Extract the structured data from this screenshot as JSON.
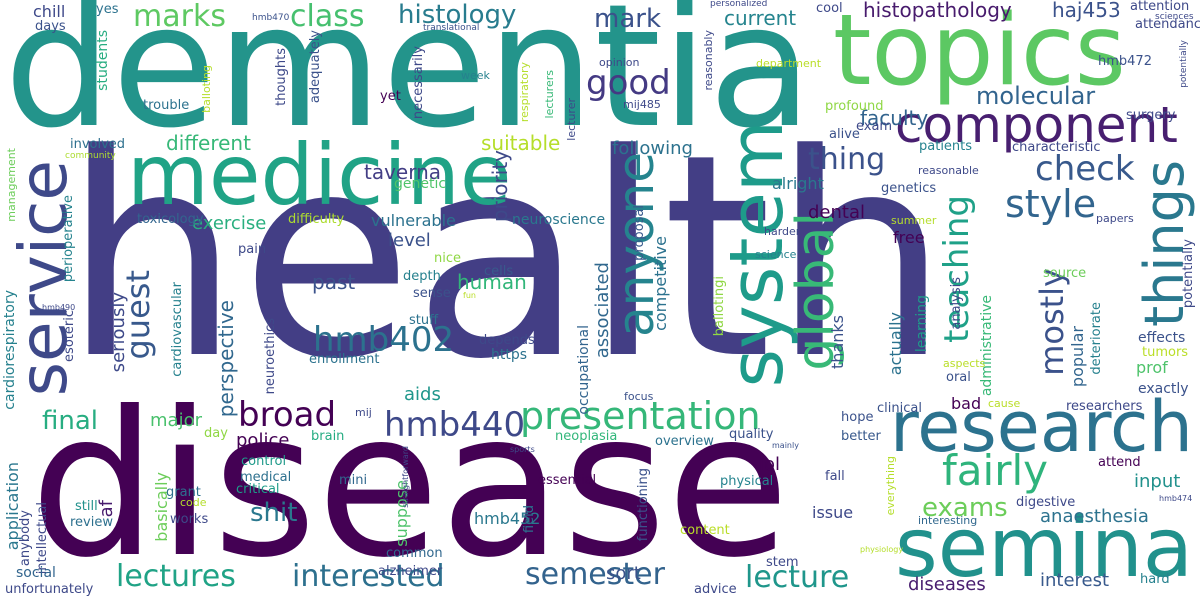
{
  "words": [
    "dementia",
    "health",
    "disease",
    "topics",
    "medicine",
    "service",
    "system",
    "seminar",
    "research",
    "component",
    "things",
    "anyone",
    "global",
    "presentation",
    "fairly",
    "broad",
    "hmb440",
    "hmb402",
    "style",
    "check",
    "teaching",
    "lectures",
    "interested",
    "semester",
    "lecture",
    "marks",
    "class",
    "histology",
    "good",
    "mark",
    "current",
    "histopathology",
    "haj453",
    "molecular",
    "faculty",
    "thing",
    "mostly",
    "guest",
    "exams",
    "final",
    "shit",
    "past",
    "human",
    "level",
    "dental",
    "free",
    "alright",
    "following",
    "taverna",
    "suitable",
    "priority",
    "different",
    "exercise",
    "vulnerable",
    "neuroscience",
    "genetic",
    "difficulty",
    "toxicology",
    "perspective",
    "seriously",
    "aids",
    "police",
    "major",
    "day",
    "brain",
    "control",
    "medical",
    "critical",
    "mini",
    "hmb452",
    "works",
    "grant",
    "review",
    "still",
    "af",
    "application",
    "basically",
    "suppose",
    "sort",
    "issue",
    "lol",
    "physical",
    "quality",
    "overview",
    "essential",
    "neoplasia",
    "field",
    "common",
    "alzheimer",
    "advice",
    "content",
    "functioning",
    "stem",
    "hard",
    "diseases",
    "interest",
    "anaesthesia",
    "input",
    "tumors",
    "effects",
    "exactly",
    "researchers",
    "attend",
    "better",
    "hope",
    "clinical",
    "bad",
    "oral",
    "prof",
    "popular",
    "thanks",
    "actually",
    "learning",
    "administrative",
    "potentially",
    "source",
    "deteriorate",
    "analysis",
    "ballotingi",
    "proposal",
    "competitive",
    "associated",
    "occupational",
    "https",
    "depends",
    "enrollment",
    "neuroethics",
    "stuff",
    "sense",
    "depth",
    "cells",
    "nice",
    "pain",
    "esoteric",
    "cardiovascular",
    "perioperative",
    "cardiorespiratory",
    "intellectual",
    "anybody",
    "unfortunately",
    "social",
    "management",
    "community",
    "chill",
    "days",
    "yes",
    "students",
    "trouble",
    "thoughts",
    "adequately",
    "yet",
    "necessarily",
    "potentially",
    "involved",
    "hmb490",
    "hmb470",
    "translational",
    "reasonably",
    "personalized",
    "cool",
    "sciences",
    "attention",
    "hmb472",
    "surgery",
    "characteristic",
    "genetics",
    "reasonable",
    "patients",
    "exam",
    "alive",
    "profound",
    "department",
    "mij485",
    "opinion",
    "week",
    "respiratory",
    "lecturers",
    "lecturer",
    "balloting",
    "summer",
    "harder",
    "science",
    "papers",
    "everything",
    "interesting",
    "digestive",
    "hmb474",
    "cause",
    "mainly",
    "physiology",
    "sports",
    "straightforward",
    "code",
    "mij",
    "fall",
    "focus",
    "attendance",
    "aspects",
    "fun"
  ]
}
